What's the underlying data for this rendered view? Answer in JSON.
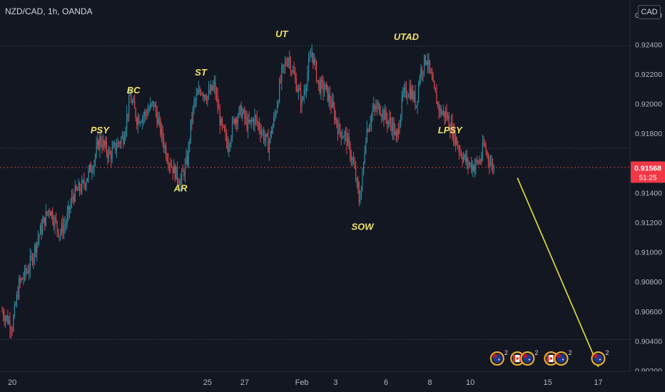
{
  "header": {
    "ticker": "NZD/CAD, 1h, OANDA",
    "currency_badge": "CAD"
  },
  "colors": {
    "background": "#131722",
    "bull": "#2e8a9e",
    "bear": "#d9464b",
    "label": "#f2e06b",
    "axis_text": "#b2b5be",
    "arrow": "#e8e23a",
    "price_tag": "#f23645"
  },
  "price_tag": {
    "price": "0.91568",
    "countdown": "51:25"
  },
  "chart_data": {
    "type": "candlestick",
    "symbol": "NZD/CAD",
    "interval": "1h",
    "ylim": [
      0.902,
      0.927
    ],
    "y_ticks": [
      "0.92600",
      "0.92400",
      "0.92200",
      "0.92000",
      "0.91800",
      "0.91400",
      "0.91200",
      "0.91000",
      "0.90800",
      "0.90600",
      "0.90400",
      "0.90200"
    ],
    "y_tick_values": [
      0.926,
      0.924,
      0.922,
      0.92,
      0.918,
      0.914,
      0.912,
      0.91,
      0.908,
      0.906,
      0.904,
      0.902
    ],
    "x_ticks": [
      "20",
      "25",
      "27",
      "Feb",
      "3",
      "6",
      "8",
      "10",
      "15",
      "17"
    ],
    "x_tick_positions": [
      3,
      61,
      72,
      89,
      99,
      114,
      127,
      139,
      162,
      177
    ],
    "last_price": 0.91568,
    "horizontal_levels": [
      0.9239,
      0.917,
      0.9157,
      0.9041
    ],
    "wyckoff_labels": [
      {
        "text": "PSY",
        "bar": 29,
        "price": 0.918
      },
      {
        "text": "BC",
        "bar": 39,
        "price": 0.9207
      },
      {
        "text": "AR",
        "bar": 53,
        "price": 0.9141
      },
      {
        "text": "ST",
        "bar": 59,
        "price": 0.9219
      },
      {
        "text": "UT",
        "bar": 83,
        "price": 0.9245
      },
      {
        "text": "UTAD",
        "bar": 120,
        "price": 0.9243
      },
      {
        "text": "SOW",
        "bar": 107,
        "price": 0.9115
      },
      {
        "text": "LPSY",
        "bar": 133,
        "price": 0.918
      }
    ],
    "path": [
      [
        0,
        0.906
      ],
      [
        3,
        0.905
      ],
      [
        5,
        0.9078
      ],
      [
        8,
        0.909
      ],
      [
        11,
        0.9112
      ],
      [
        14,
        0.913
      ],
      [
        17,
        0.9113
      ],
      [
        19,
        0.912
      ],
      [
        21,
        0.9138
      ],
      [
        24,
        0.9145
      ],
      [
        27,
        0.916
      ],
      [
        29,
        0.9176
      ],
      [
        32,
        0.9165
      ],
      [
        34,
        0.9172
      ],
      [
        36,
        0.9178
      ],
      [
        38,
        0.9205
      ],
      [
        40,
        0.919
      ],
      [
        42,
        0.9192
      ],
      [
        45,
        0.92
      ],
      [
        47,
        0.9182
      ],
      [
        49,
        0.9165
      ],
      [
        51,
        0.9155
      ],
      [
        53,
        0.9148
      ],
      [
        55,
        0.9162
      ],
      [
        56,
        0.9185
      ],
      [
        57,
        0.92
      ],
      [
        59,
        0.921
      ],
      [
        61,
        0.9205
      ],
      [
        63,
        0.9212
      ],
      [
        65,
        0.9185
      ],
      [
        67,
        0.9172
      ],
      [
        69,
        0.919
      ],
      [
        71,
        0.9195
      ],
      [
        73,
        0.9185
      ],
      [
        75,
        0.919
      ],
      [
        77,
        0.9182
      ],
      [
        79,
        0.9172
      ],
      [
        81,
        0.9192
      ],
      [
        83,
        0.922
      ],
      [
        85,
        0.9232
      ],
      [
        87,
        0.9216
      ],
      [
        89,
        0.92
      ],
      [
        91,
        0.9225
      ],
      [
        92,
        0.9235
      ],
      [
        94,
        0.9212
      ],
      [
        96,
        0.921
      ],
      [
        98,
        0.9198
      ],
      [
        100,
        0.9182
      ],
      [
        102,
        0.9178
      ],
      [
        104,
        0.9162
      ],
      [
        105,
        0.915
      ],
      [
        106,
        0.9135
      ],
      [
        107,
        0.915
      ],
      [
        108,
        0.918
      ],
      [
        110,
        0.9195
      ],
      [
        112,
        0.9198
      ],
      [
        114,
        0.919
      ],
      [
        116,
        0.9185
      ],
      [
        117,
        0.9175
      ],
      [
        119,
        0.9205
      ],
      [
        121,
        0.921
      ],
      [
        123,
        0.92
      ],
      [
        124,
        0.922
      ],
      [
        126,
        0.9232
      ],
      [
        128,
        0.921
      ],
      [
        130,
        0.9195
      ],
      [
        132,
        0.9192
      ],
      [
        134,
        0.918
      ],
      [
        136,
        0.9168
      ],
      [
        138,
        0.916
      ],
      [
        140,
        0.9158
      ],
      [
        142,
        0.9162
      ],
      [
        143,
        0.9172
      ],
      [
        145,
        0.916
      ],
      [
        146,
        0.9157
      ]
    ],
    "forecast_arrow": {
      "from": {
        "bar": 153,
        "price": 0.915
      },
      "to": {
        "bar": 177,
        "price": 0.9023
      }
    }
  },
  "event_icons": [
    {
      "name": "nz-flag-event-icon",
      "count": "2",
      "bar": 147
    },
    {
      "name": "ca-flag-event-icon",
      "count": "",
      "bar": 153
    },
    {
      "name": "nz-flag-event-icon",
      "count": "2",
      "bar": 156
    },
    {
      "name": "ca-flag-event-icon",
      "count": "",
      "bar": 163
    },
    {
      "name": "nz-flag-event-icon",
      "count": "2",
      "bar": 166
    },
    {
      "name": "nz-flag-event-icon",
      "count": "2",
      "bar": 177
    }
  ]
}
